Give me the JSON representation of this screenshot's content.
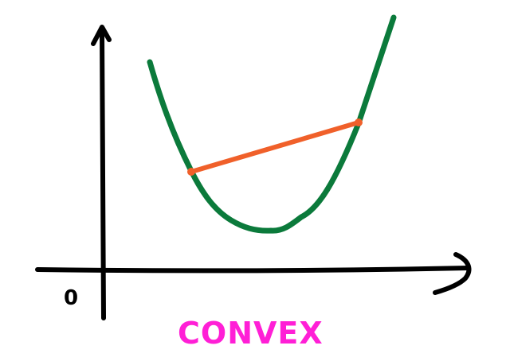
{
  "origin_label": "0",
  "caption": "CONVEX",
  "colors": {
    "axes": "#000000",
    "curve": "#0b7a3b",
    "chord": "#f0602a",
    "caption": "#ff1fd6"
  },
  "icons": {
    "y_axis_arrowhead": "arrow-up",
    "x_axis_arrowhead": "arrow-right"
  }
}
